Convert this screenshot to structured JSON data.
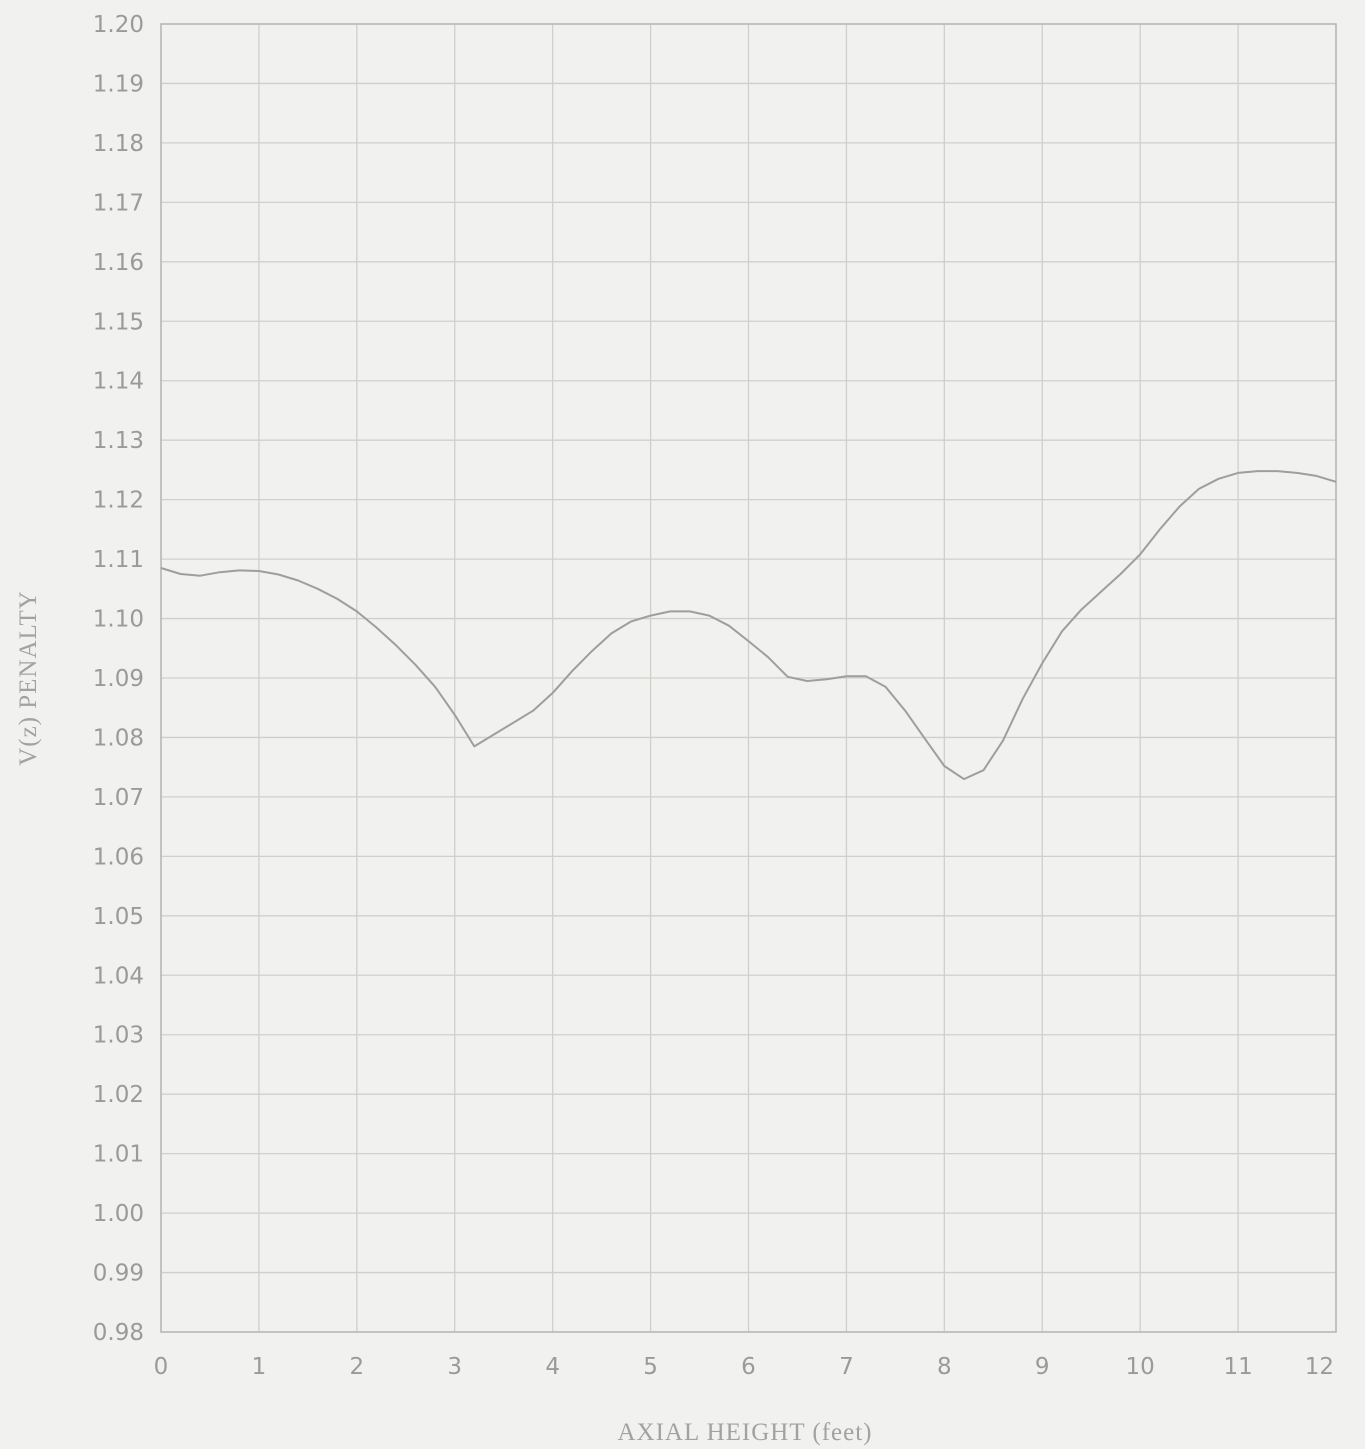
{
  "chart_data": {
    "type": "line",
    "xlabel": "AXIAL HEIGHT (feet)",
    "ylabel": "V(z) PENALTY",
    "xlim": [
      0,
      12
    ],
    "ylim": [
      0.98,
      1.2
    ],
    "x_ticks": [
      "0",
      "1",
      "2",
      "3",
      "4",
      "5",
      "6",
      "7",
      "8",
      "9",
      "10",
      "11",
      "12"
    ],
    "y_ticks": [
      "0.98",
      "0.99",
      "1.00",
      "1.01",
      "1.02",
      "1.03",
      "1.04",
      "1.05",
      "1.06",
      "1.07",
      "1.08",
      "1.09",
      "1.10",
      "1.11",
      "1.12",
      "1.13",
      "1.14",
      "1.15",
      "1.16",
      "1.17",
      "1.18",
      "1.19",
      "1.20"
    ],
    "grid": true,
    "line_color": "#9e9e9c",
    "series": [
      {
        "x": [
          0.0,
          0.2,
          0.4,
          0.6,
          0.8,
          1.0,
          1.2,
          1.4,
          1.6,
          1.8,
          2.0,
          2.2,
          2.4,
          2.6,
          2.8,
          3.0,
          3.2,
          3.4,
          3.6,
          3.8,
          4.0,
          4.2,
          4.4,
          4.6,
          4.8,
          5.0,
          5.2,
          5.4,
          5.6,
          5.8,
          6.0,
          6.2,
          6.4,
          6.6,
          6.8,
          7.0,
          7.2,
          7.4,
          7.6,
          7.8,
          8.0,
          8.2,
          8.4,
          8.6,
          8.8,
          9.0,
          9.2,
          9.4,
          9.6,
          9.8,
          10.0,
          10.2,
          10.4,
          10.6,
          10.8,
          11.0,
          11.2,
          11.4,
          11.6,
          11.8,
          12.0
        ],
        "y": [
          1.1085,
          1.1075,
          1.1072,
          1.1078,
          1.1081,
          1.108,
          1.1074,
          1.1064,
          1.105,
          1.1033,
          1.1012,
          1.0985,
          1.0955,
          1.0922,
          1.0885,
          1.0838,
          1.0785,
          1.0805,
          1.0825,
          1.0845,
          1.0875,
          1.0912,
          1.0945,
          1.0975,
          1.0995,
          1.1005,
          1.1012,
          1.1012,
          1.1005,
          1.0988,
          1.0962,
          1.0935,
          1.0902,
          1.0895,
          1.0898,
          1.0903,
          1.0903,
          1.0885,
          1.0845,
          1.0798,
          1.0752,
          1.073,
          1.0745,
          1.0795,
          1.0865,
          1.0925,
          1.0978,
          1.1015,
          1.1045,
          1.1075,
          1.1108,
          1.115,
          1.1188,
          1.1218,
          1.1235,
          1.1245,
          1.1248,
          1.1248,
          1.1245,
          1.124,
          1.123
        ]
      }
    ]
  }
}
